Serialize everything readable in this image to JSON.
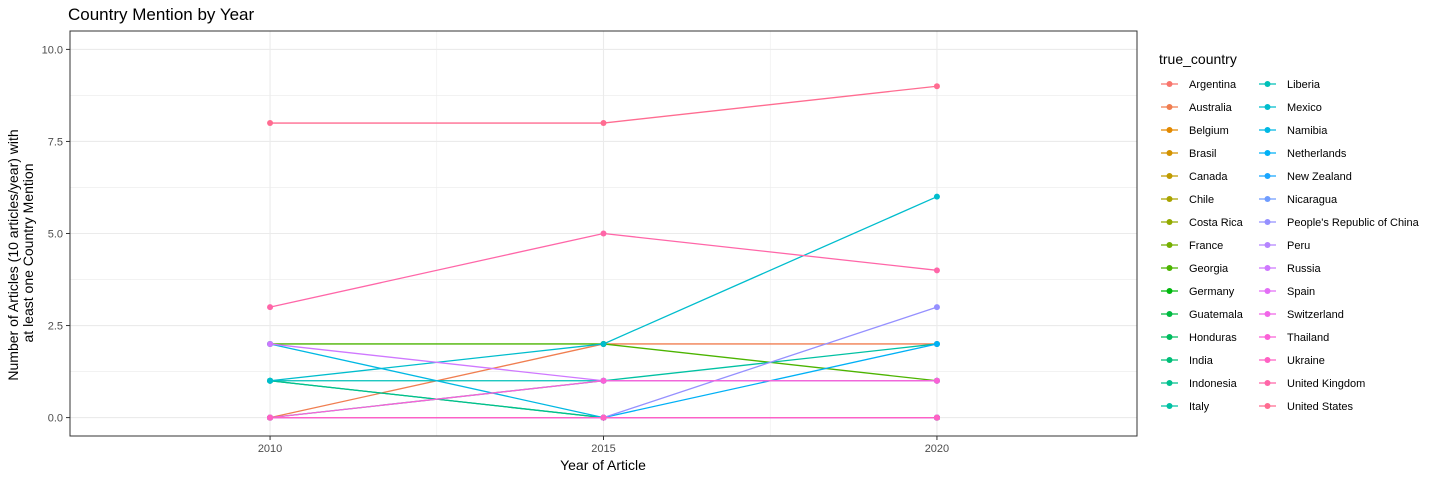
{
  "chart_data": {
    "type": "line",
    "title": "Country Mention by Year",
    "xlabel": "Year of Article",
    "ylabel_lines": [
      "Number of Articles (10 articles/year) with",
      "at least one Country Mention"
    ],
    "x": [
      2010,
      2015,
      2020
    ],
    "xlim": [
      2007,
      2023
    ],
    "ylim": [
      -0.5,
      10.5
    ],
    "x_ticks": [
      2010,
      2015,
      2020
    ],
    "y_ticks": [
      0,
      2.5,
      5,
      7.5,
      10
    ],
    "y_tick_labels": [
      "0.0",
      "2.5",
      "5.0",
      "7.5",
      "10.0"
    ],
    "grid": true,
    "legend_title": "true_country",
    "legend_position": "right",
    "series": [
      {
        "name": "Argentina",
        "color": "#F8766D",
        "values": [
          0,
          0,
          0
        ]
      },
      {
        "name": "Australia",
        "color": "#F07E50",
        "values": [
          0,
          2,
          2
        ]
      },
      {
        "name": "Belgium",
        "color": "#E38900",
        "values": [
          0,
          0,
          0
        ]
      },
      {
        "name": "Brasil",
        "color": "#D39200",
        "values": [
          0,
          0,
          0
        ]
      },
      {
        "name": "Canada",
        "color": "#C09B00",
        "values": [
          0,
          0,
          0
        ]
      },
      {
        "name": "Chile",
        "color": "#AAA300",
        "values": [
          0,
          0,
          0
        ]
      },
      {
        "name": "Costa Rica",
        "color": "#93AA00",
        "values": [
          0,
          0,
          0
        ]
      },
      {
        "name": "France",
        "color": "#75AF00",
        "values": [
          0,
          0,
          0
        ]
      },
      {
        "name": "Georgia",
        "color": "#4CB400",
        "values": [
          2,
          2,
          1
        ]
      },
      {
        "name": "Germany",
        "color": "#00B80E",
        "values": [
          0,
          0,
          0
        ]
      },
      {
        "name": "Guatemala",
        "color": "#00BA42",
        "values": [
          0,
          0,
          0
        ]
      },
      {
        "name": "Honduras",
        "color": "#00BC5F",
        "values": [
          1,
          0,
          0
        ]
      },
      {
        "name": "India",
        "color": "#00BE78",
        "values": [
          0,
          0,
          0
        ]
      },
      {
        "name": "Indonesia",
        "color": "#00C08E",
        "values": [
          1,
          0,
          0
        ]
      },
      {
        "name": "Italy",
        "color": "#00C1A3",
        "values": [
          0,
          1,
          2
        ]
      },
      {
        "name": "Liberia",
        "color": "#00C0B8",
        "values": [
          1,
          1,
          1
        ]
      },
      {
        "name": "Mexico",
        "color": "#00BDCD",
        "values": [
          1,
          2,
          6
        ]
      },
      {
        "name": "Namibia",
        "color": "#00B8E3",
        "values": [
          2,
          0,
          0
        ]
      },
      {
        "name": "Netherlands",
        "color": "#00B0F6",
        "values": [
          0,
          0,
          2
        ]
      },
      {
        "name": "New Zealand",
        "color": "#19A6FF",
        "values": [
          0,
          0,
          0
        ]
      },
      {
        "name": "Nicaragua",
        "color": "#6F9CFF",
        "values": [
          0,
          0,
          0
        ]
      },
      {
        "name": "People's Republic of China",
        "color": "#9590FF",
        "values": [
          0,
          0,
          3
        ]
      },
      {
        "name": "Peru",
        "color": "#B584FF",
        "values": [
          0,
          0,
          0
        ]
      },
      {
        "name": "Russia",
        "color": "#CF78FF",
        "values": [
          2,
          1,
          1
        ]
      },
      {
        "name": "Spain",
        "color": "#E36EF6",
        "values": [
          0,
          0,
          0
        ]
      },
      {
        "name": "Switzerland",
        "color": "#F166E8",
        "values": [
          0,
          0,
          0
        ]
      },
      {
        "name": "Thailand",
        "color": "#FB61D7",
        "values": [
          0,
          1,
          1
        ]
      },
      {
        "name": "Ukraine",
        "color": "#FF61C3",
        "values": [
          0,
          0,
          0
        ]
      },
      {
        "name": "United Kingdom",
        "color": "#FF66A8",
        "values": [
          3,
          5,
          4
        ]
      },
      {
        "name": "United States",
        "color": "#FF6C91",
        "values": [
          8,
          8,
          9
        ]
      }
    ]
  }
}
